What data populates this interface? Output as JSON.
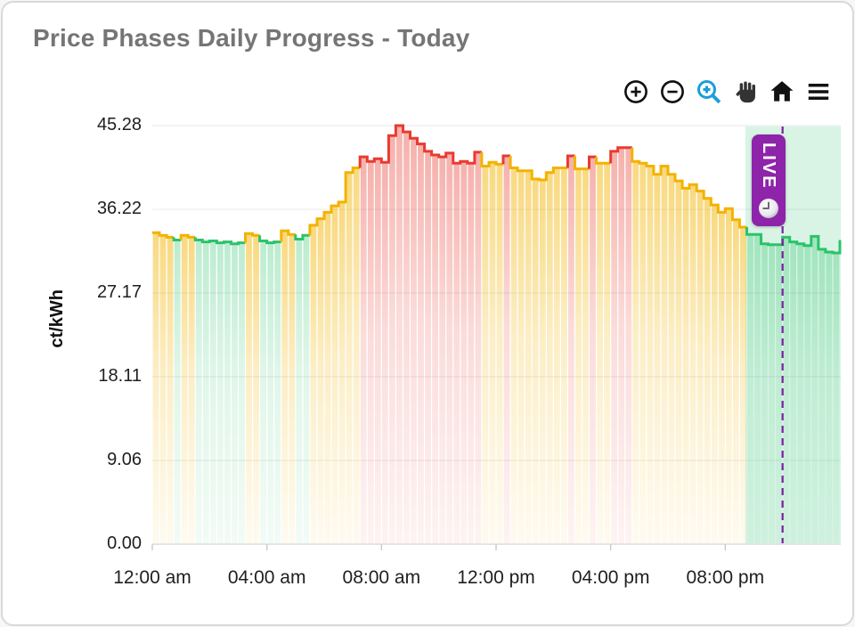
{
  "header": {
    "title": "Price Phases Daily Progress - Today"
  },
  "toolbar": {
    "buttons": [
      {
        "name": "zoom-in",
        "active": false
      },
      {
        "name": "zoom-out",
        "active": false
      },
      {
        "name": "box-zoom",
        "active": true
      },
      {
        "name": "pan",
        "active": false
      },
      {
        "name": "home",
        "active": false
      },
      {
        "name": "menu",
        "active": false
      }
    ],
    "active_color": "#1b9ed9",
    "icon_color": "#111111"
  },
  "chart_data": {
    "type": "area",
    "step": true,
    "title": "Price Phases Daily Progress - Today",
    "xlabel": "",
    "ylabel": "ct/kWh",
    "ylim": [
      0,
      45.28
    ],
    "x_range_hours": [
      0,
      24
    ],
    "interval_minutes": 15,
    "start_time": "12:00 am",
    "grid": "horizontal-only",
    "legend": "none",
    "y_ticks": [
      "0.00",
      "9.06",
      "18.11",
      "27.17",
      "36.22",
      "45.28"
    ],
    "x_ticks": [
      "12:00 am",
      "04:00 am",
      "08:00 am",
      "12:00 pm",
      "04:00 pm",
      "08:00 pm"
    ],
    "x_tick_hours": [
      0,
      4,
      8,
      12,
      16,
      20
    ],
    "values": [
      33.7,
      33.4,
      33.2,
      32.9,
      33.4,
      33.2,
      32.9,
      32.7,
      32.8,
      32.6,
      32.7,
      32.5,
      32.6,
      33.6,
      33.4,
      32.8,
      32.6,
      32.7,
      33.9,
      33.5,
      33.0,
      33.4,
      34.5,
      35.2,
      35.9,
      36.6,
      37.0,
      40.2,
      40.7,
      41.9,
      41.4,
      41.7,
      41.3,
      44.2,
      45.28,
      44.6,
      43.9,
      43.3,
      42.5,
      42.1,
      41.9,
      42.3,
      41.2,
      41.4,
      41.2,
      42.4,
      40.9,
      41.3,
      41.1,
      42.0,
      40.7,
      40.4,
      40.4,
      39.5,
      39.4,
      40.2,
      40.7,
      40.7,
      42.0,
      40.6,
      40.6,
      41.9,
      41.2,
      41.2,
      42.5,
      42.9,
      42.9,
      41.4,
      41.2,
      40.9,
      40.0,
      40.9,
      40.0,
      39.3,
      38.5,
      38.9,
      38.2,
      37.4,
      36.7,
      35.9,
      36.3,
      35.1,
      34.3,
      33.5,
      33.5,
      32.5,
      32.4,
      32.4,
      33.2,
      32.7,
      32.5,
      32.3,
      33.3,
      31.9,
      31.6,
      31.5
    ],
    "phases": "yyygyygggggggyygggyyggyyyyyyyrrrrrrrrrrrrrrrrryyyryyyyyyyyryyryyrrryyyyyyyyyyyyyyyygggggggggggggg",
    "end_value": 32.9,
    "phase_colors": {
      "y": "#f2b300",
      "g": "#2bc36a",
      "r": "#e83b30"
    },
    "phase_names": {
      "y": "medium-price",
      "g": "low-price",
      "r": "high-price"
    },
    "fill_alpha": {
      "y": [
        0.5,
        0.06
      ],
      "g": [
        0.32,
        0.06
      ],
      "r": [
        0.4,
        0.06
      ]
    },
    "live": {
      "label": "LIVE",
      "band_start_hour": 20.7,
      "now_hour": 22.0,
      "band_color": "rgba(46,196,110,0.18)",
      "line_color": "#7b1fa2",
      "badge_color": "#8e24aa"
    }
  }
}
